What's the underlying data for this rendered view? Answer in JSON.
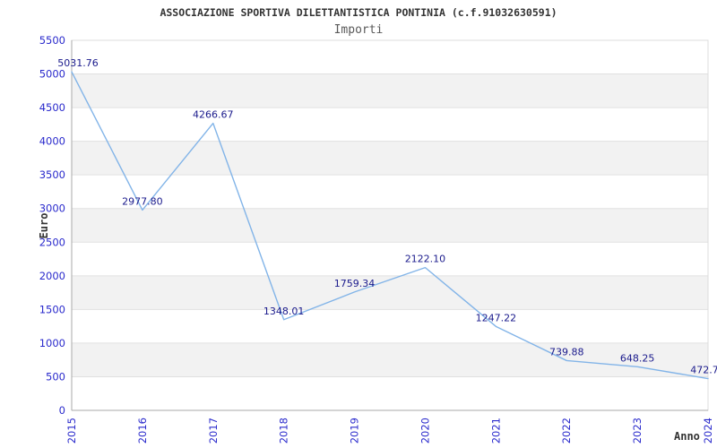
{
  "header": {
    "title": "ASSOCIAZIONE SPORTIVA DILETTANTISTICA PONTINIA (c.f.91032630591)",
    "subtitle": "Importi"
  },
  "chart_data": {
    "type": "line",
    "title": "Importi",
    "x": [
      "2015",
      "2016",
      "2017",
      "2018",
      "2019",
      "2020",
      "2021",
      "2022",
      "2023",
      "2024"
    ],
    "series": [
      {
        "name": "Importi",
        "values": [
          5031.76,
          2977.8,
          4266.67,
          1348.01,
          1759.34,
          2122.1,
          1247.22,
          739.88,
          648.25,
          472.7
        ],
        "point_labels": [
          "5031.76",
          "2977.80",
          "4266.67",
          "1348.01",
          "1759.34",
          "2122.10",
          "1247.22",
          "739.88",
          "648.25",
          "472.7"
        ]
      }
    ],
    "xlabel": "Anno",
    "ylabel": "Euro",
    "ylim": [
      0,
      5500
    ],
    "y_ticks": [
      0,
      500,
      1000,
      1500,
      2000,
      2500,
      3000,
      3500,
      4000,
      4500,
      5000,
      5500
    ],
    "grid": "horizontal gridlines every 500 with alternating gray bands",
    "legend": "none",
    "markers": "none"
  },
  "colors": {
    "background": "#ffffff",
    "line": "#82b4e8",
    "point_label": "#1a1a8c",
    "tick_label": "#2a2acc",
    "band": "#f2f2f2",
    "gridline": "#e0e0e0",
    "plot_border": "#dcdcdc",
    "axis_line": "#aaaaaa",
    "title": "#333333",
    "subtitle": "#595959",
    "axis_title": "#333333"
  }
}
